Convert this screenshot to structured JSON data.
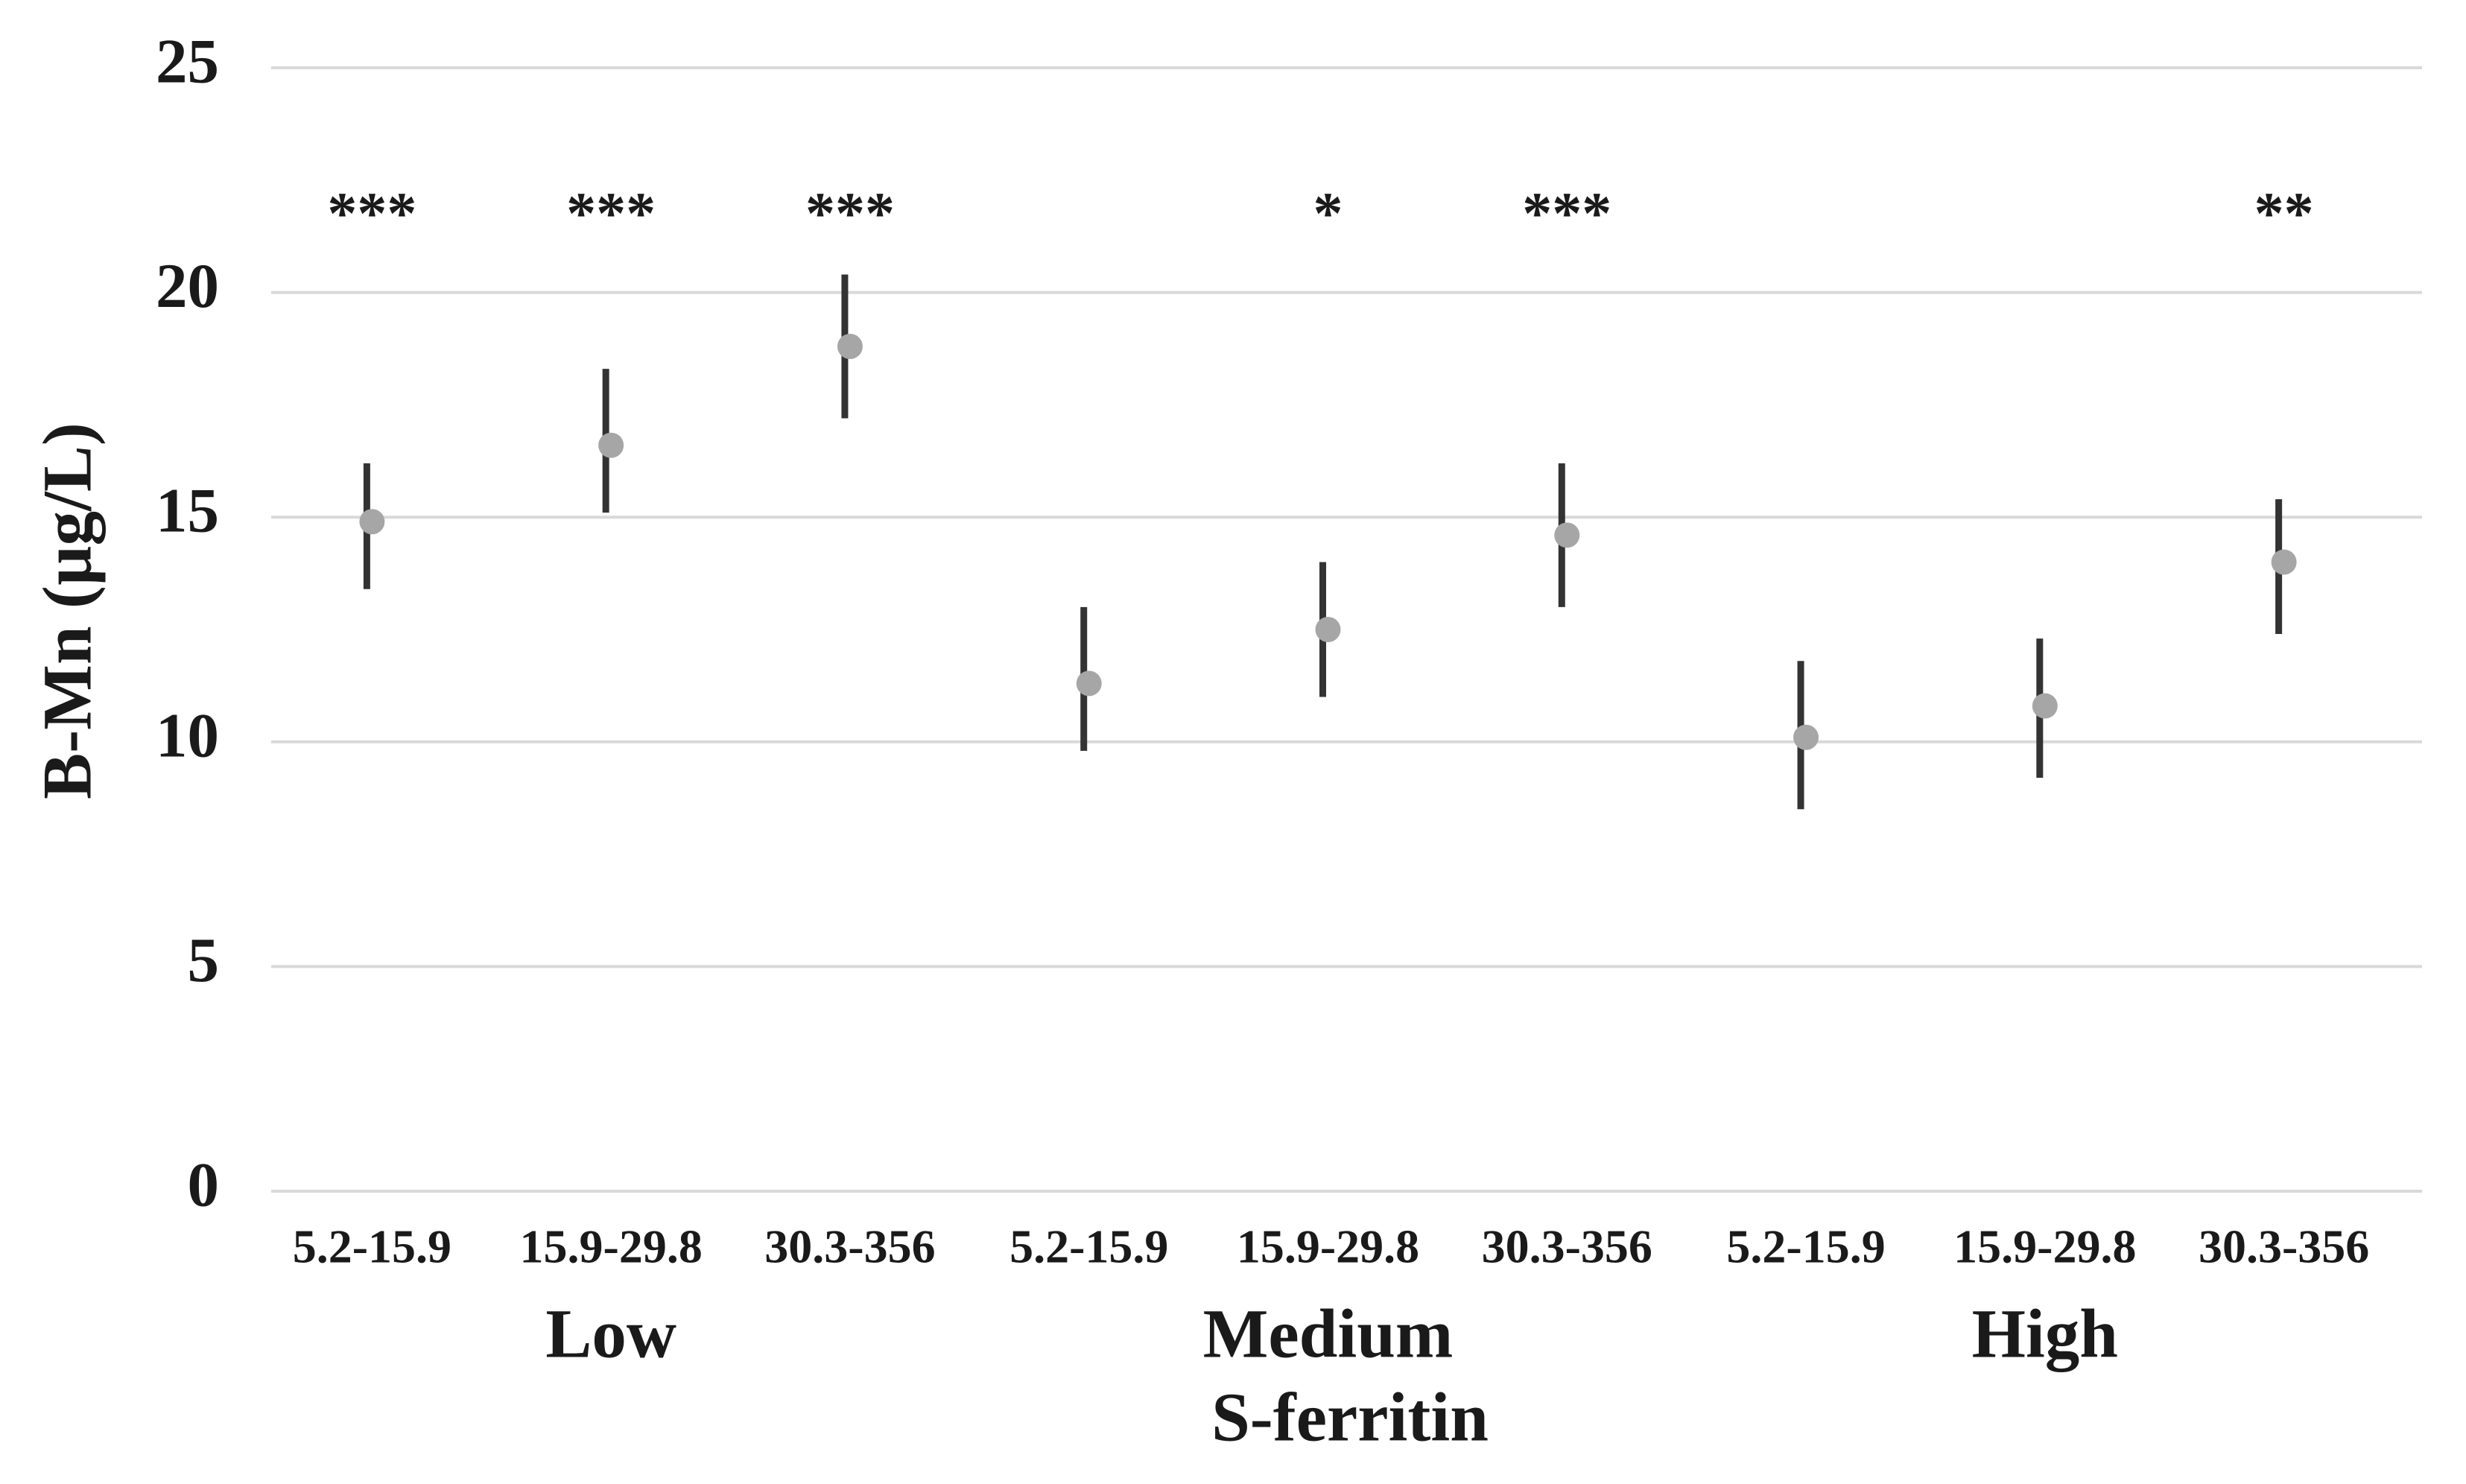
{
  "chart_data": {
    "type": "dot-errorbar",
    "y_label": "B-Mn (µg/L)",
    "x_label": "S-ferritin",
    "categories": [
      "5.2-15.9",
      "15.9-29.8",
      "30.3-356",
      "5.2-15.9",
      "15.9-29.8",
      "30.3-356",
      "5.2-15.9",
      "15.9-29.8",
      "30.3-356"
    ],
    "groups": [
      "Low",
      "Medium",
      "High"
    ],
    "values": [
      14.9,
      16.6,
      18.8,
      11.3,
      12.5,
      14.6,
      10.1,
      10.8,
      14.0
    ],
    "lower": [
      13.4,
      15.1,
      17.2,
      9.8,
      11.0,
      13.0,
      8.5,
      9.2,
      12.4
    ],
    "upper": [
      16.2,
      18.3,
      20.4,
      13.0,
      14.0,
      16.2,
      11.8,
      12.3,
      15.4
    ],
    "significance": [
      "***",
      "***",
      "***",
      null,
      "*",
      "***",
      null,
      null,
      "**"
    ],
    "color": "#a6a6a6",
    "error_color": "#333333",
    "ylim": [
      0,
      25
    ],
    "yticks": [
      0,
      5,
      10,
      15,
      20,
      25
    ],
    "grid": true
  }
}
